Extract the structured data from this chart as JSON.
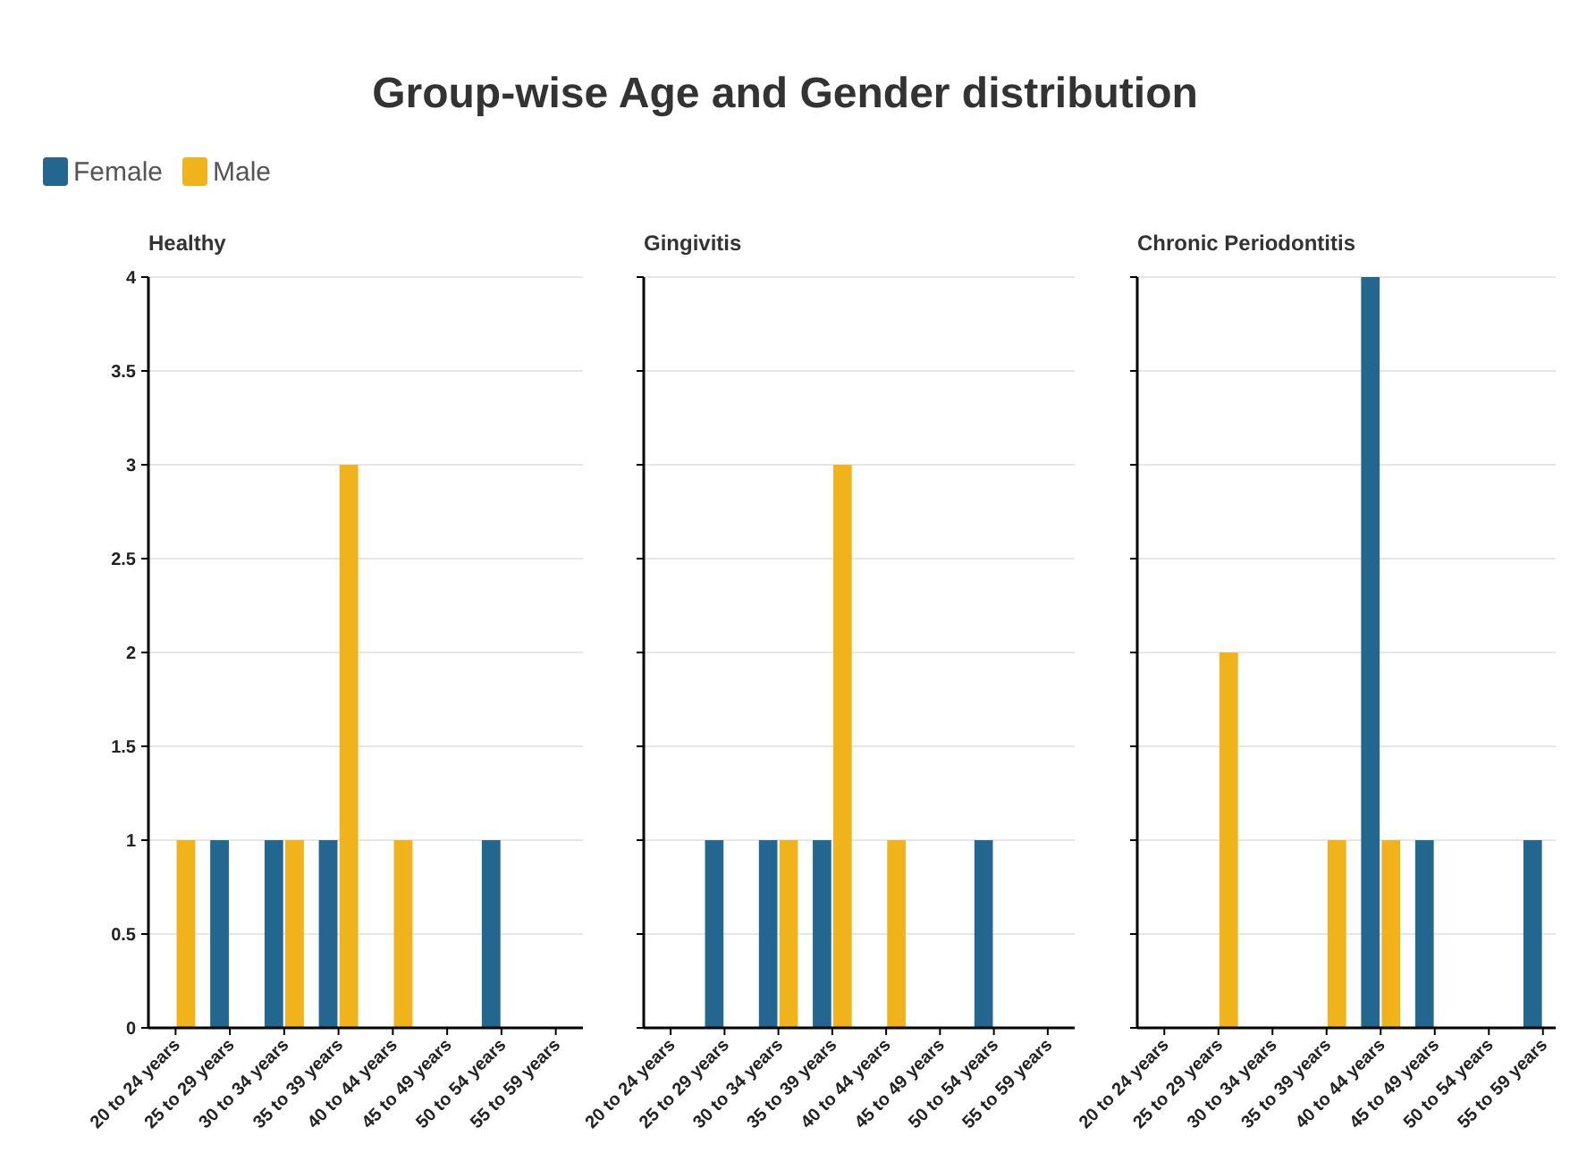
{
  "chart_data": [
    {
      "type": "bar",
      "title": "Group-wise Age and Gender distribution",
      "subtitle": "Healthy",
      "categories": [
        "20 to 24 years",
        "25 to 29 years",
        "30 to 34 years",
        "35 to 39 years",
        "40 to 44 years",
        "45 to 49 years",
        "50 to 54 years",
        "55 to 59 years"
      ],
      "series": [
        {
          "name": "Female",
          "color": "#23668f",
          "values": [
            0,
            1,
            1,
            1,
            0,
            0,
            1,
            0
          ]
        },
        {
          "name": "Male",
          "color": "#f0b31c",
          "values": [
            1,
            0,
            1,
            3,
            1,
            0,
            0,
            0
          ]
        }
      ],
      "ylim": [
        0,
        4
      ],
      "yticks": [
        0,
        0.5,
        1,
        1.5,
        2,
        2.5,
        3,
        3.5,
        4
      ],
      "grid": "y",
      "legend": "top left"
    },
    {
      "type": "bar",
      "subtitle": "Gingivitis",
      "categories": [
        "20 to 24 years",
        "25 to 29 years",
        "30 to 34 years",
        "35 to 39 years",
        "40 to 44 years",
        "45 to 49 years",
        "50 to 54 years",
        "55 to 59 years"
      ],
      "series": [
        {
          "color": "#23668f",
          "values": [
            0,
            1,
            1,
            1,
            0,
            0,
            1,
            0
          ]
        },
        {
          "color": "#f0b31c",
          "values": [
            0,
            0,
            1,
            3,
            1,
            0,
            0,
            0
          ]
        }
      ],
      "ylim": [
        0,
        4
      ],
      "yticks": [
        0,
        0.5,
        1,
        1.5,
        2,
        2.5,
        3,
        3.5,
        4
      ],
      "grid": "y",
      "tick_labels": "x"
    },
    {
      "type": "bar",
      "subtitle": "Chronic Periodontitis",
      "categories": [
        "20 to 24 years",
        "25 to 29 years",
        "30 to 34 years",
        "35 to 39 years",
        "40 to 44 years",
        "45 to 49 years",
        "50 to 54 years",
        "55 to 59 years"
      ],
      "series": [
        {
          "color": "#23668f",
          "values": [
            0,
            0,
            0,
            0,
            4,
            1,
            0,
            1
          ]
        },
        {
          "color": "#f0b31c",
          "values": [
            0,
            2,
            0,
            1,
            1,
            0,
            0,
            0
          ]
        }
      ],
      "ylim": [
        0,
        4
      ],
      "yticks": [
        0,
        0.5,
        1,
        1.5,
        2,
        2.5,
        3,
        3.5,
        4
      ],
      "grid": "y",
      "tick_labels": "x"
    }
  ]
}
